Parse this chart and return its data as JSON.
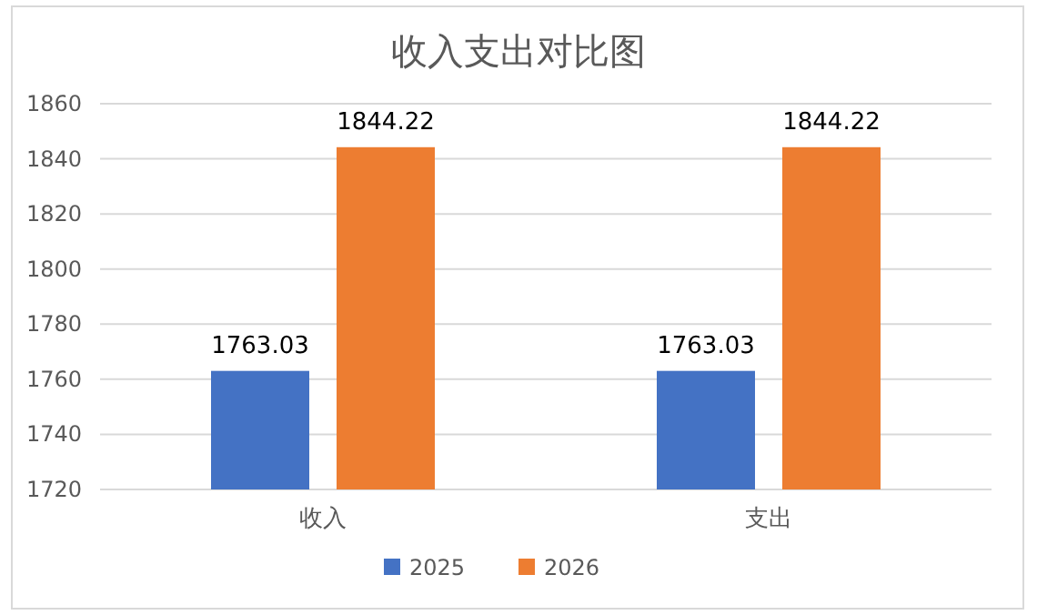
{
  "chart_data": {
    "type": "bar",
    "title": "收入支出对比图",
    "categories": [
      "收入",
      "支出"
    ],
    "series": [
      {
        "name": "2025",
        "color": "#4472c4",
        "values": [
          1763.03,
          1763.03
        ]
      },
      {
        "name": "2026",
        "color": "#ed7d31",
        "values": [
          1844.22,
          1844.22
        ]
      }
    ],
    "ylim": [
      1720,
      1860
    ],
    "yticks": [
      1720,
      1740,
      1760,
      1780,
      1800,
      1820,
      1840,
      1860
    ],
    "grid": "y",
    "legend": "bottom",
    "data_labels": true
  }
}
